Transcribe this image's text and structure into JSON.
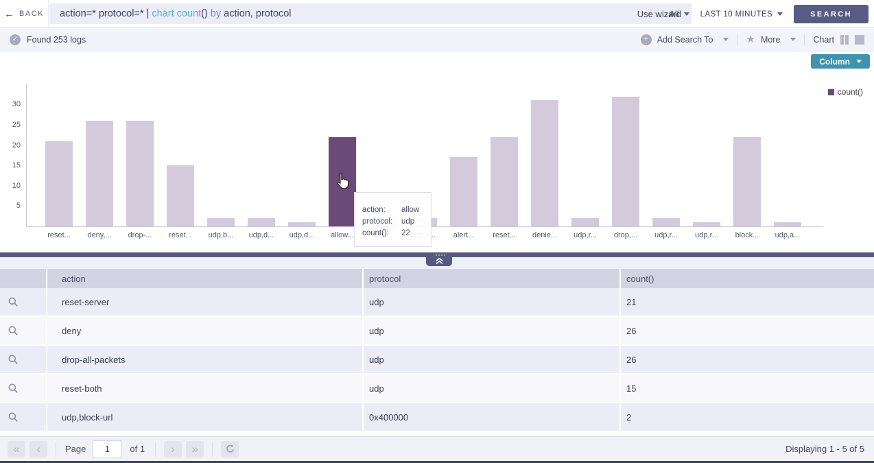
{
  "topbar": {
    "back_label": "BACK",
    "query": {
      "segments": [
        {
          "text": "action=* protocol=* | ",
          "color": "#3d4260"
        },
        {
          "text": "chart count",
          "color": "#56b3d9"
        },
        {
          "text": "()",
          "color": "#3d4260"
        },
        {
          "text": " by ",
          "color": "#6f8fd8"
        },
        {
          "text": "action, protocol",
          "color": "#3d4260"
        }
      ]
    },
    "use_wizard_label": "Use wizard",
    "scope_label": "All",
    "time_range_label": "LAST 10 MINUTES",
    "search_label": "SEARCH"
  },
  "statusbar": {
    "found_label": "Found 253 logs",
    "add_search_label": "Add Search To",
    "more_label": "More",
    "chart_label": "Chart"
  },
  "chart": {
    "type_button_label": "Column",
    "legend_label": "count()"
  },
  "chart_data": {
    "type": "bar",
    "title": "",
    "xlabel": "",
    "ylabel": "",
    "yticks": [
      5,
      10,
      15,
      20,
      25,
      30
    ],
    "ylim": [
      0,
      34
    ],
    "grid": false,
    "legend_position": "top-right",
    "legend": [
      "count()"
    ],
    "categories": [
      "reset...",
      "deny,...",
      "drop-...",
      "reset...",
      "udp,b...",
      "udp,d...",
      "udp,d...",
      "allow...",
      "udp,d...",
      "udp,a...",
      "alert...",
      "reset...",
      "denie...",
      "udp,r...",
      "drop,...",
      "udp,r...",
      "udp,r...",
      "block...",
      "udp,a..."
    ],
    "values": [
      21,
      26,
      26,
      15,
      2,
      2,
      1,
      22,
      2,
      2,
      17,
      22,
      31,
      2,
      32,
      2,
      1,
      22,
      1
    ],
    "highlighted_index": 7,
    "bar_color": "#d3cbdb",
    "highlight_color": "#6a4b77"
  },
  "tooltip": {
    "rows": [
      {
        "label": "action:",
        "value": "allow"
      },
      {
        "label": "protocol:",
        "value": "udp"
      },
      {
        "label": "count():",
        "value": "22"
      }
    ]
  },
  "table": {
    "columns": [
      "action",
      "protocol",
      "count()"
    ],
    "rows": [
      {
        "action": "reset-server",
        "protocol": "udp",
        "count": "21"
      },
      {
        "action": "deny",
        "protocol": "udp",
        "count": "26"
      },
      {
        "action": "drop-all-packets",
        "protocol": "udp",
        "count": "26"
      },
      {
        "action": "reset-both",
        "protocol": "udp",
        "count": "15"
      },
      {
        "action": "udp,block-url",
        "protocol": "0x400000",
        "count": "2"
      }
    ]
  },
  "footer": {
    "page_label": "Page",
    "page_value": "1",
    "of_label": "of 1",
    "displaying_label": "Displaying 1 - 5 of 5"
  },
  "icons": {
    "back_arrow": "←",
    "check": "✓",
    "plus": "+",
    "star": "★",
    "first": "«",
    "prev": "‹",
    "next": "›",
    "last": "»"
  }
}
